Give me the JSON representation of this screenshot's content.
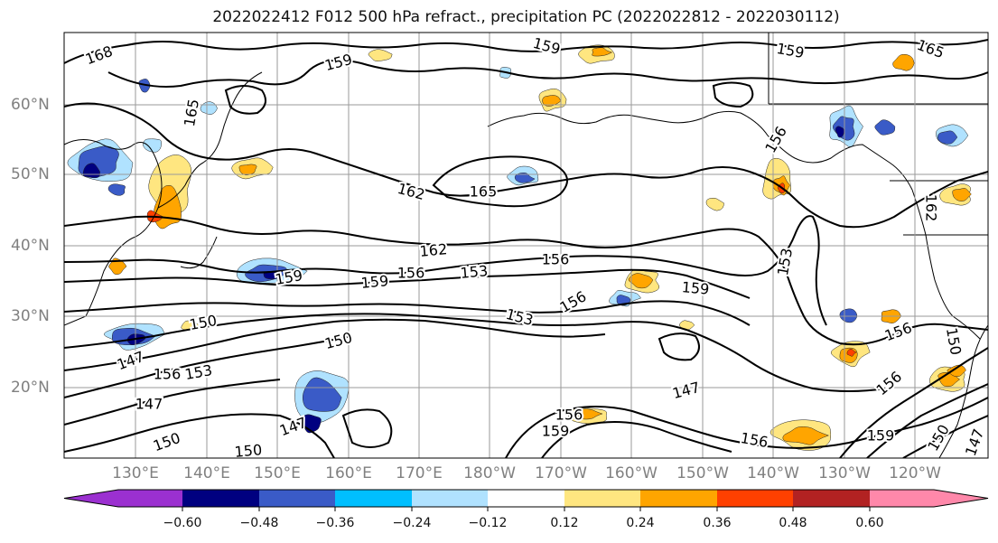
{
  "title": "2022022412 F012 500 hPa refract., precipitation PC (2022022812 - 2022030112)",
  "lat_labels": [
    "60°N",
    "50°N",
    "40°N",
    "30°N",
    "20°N"
  ],
  "lon_labels": [
    "130°E",
    "140°E",
    "150°E",
    "160°E",
    "170°E",
    "180°W",
    "170°W",
    "160°W",
    "150°W",
    "140°W",
    "130°W",
    "120°W"
  ],
  "colorbar": {
    "colors": [
      "#9b30d0",
      "#000080",
      "#3a5bc7",
      "#00bfff",
      "#b0e2ff",
      "#ffffff",
      "#ffe680",
      "#ffa500",
      "#ff4000",
      "#b22222",
      "#ff88aa"
    ],
    "labels": [
      "−0.60",
      "−0.48",
      "−0.36",
      "−0.24",
      "−0.12",
      "0.12",
      "0.24",
      "0.36",
      "0.48",
      "0.60"
    ]
  },
  "contour_labels": [
    "168",
    "159",
    "159",
    "159",
    "165",
    "165",
    "162",
    "162",
    "156",
    "153",
    "150",
    "150",
    "147",
    "147",
    "153",
    "156",
    "159",
    "159",
    "156",
    "153",
    "156",
    "159",
    "147",
    "156",
    "150",
    "147",
    "156",
    "156",
    "153",
    "156",
    "150",
    "162",
    "165",
    "159",
    "159",
    "156",
    "150",
    "147",
    "150"
  ]
}
